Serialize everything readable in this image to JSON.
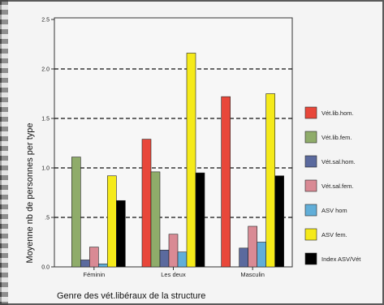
{
  "chart_data": {
    "type": "bar",
    "title": "",
    "xlabel": "Genre des vét.libéraux de la structure",
    "ylabel": "Moyenne nb de personnes per type",
    "ylim": [
      0,
      2.5
    ],
    "yticks": [
      "0.0",
      ".5",
      "1.0",
      "1.5",
      "2.0",
      "2.5"
    ],
    "ytick_values": [
      0,
      0.5,
      1.0,
      1.5,
      2.0,
      2.5
    ],
    "gridlines": "dashed",
    "legend_position": "right",
    "categories": [
      "Féminin",
      "Les deux",
      "Masculin"
    ],
    "series": [
      {
        "name": "Vét.lib.hom.",
        "color": "#e8473a",
        "values": [
          0,
          1.29,
          1.72
        ]
      },
      {
        "name": "Vét.lib.fem.",
        "color": "#8fac6a",
        "values": [
          1.11,
          0.96,
          0
        ]
      },
      {
        "name": "Vét.sal.hom.",
        "color": "#5b6a9e",
        "values": [
          0.07,
          0.17,
          0.19
        ]
      },
      {
        "name": "Vét.sal.fem.",
        "color": "#d98a94",
        "values": [
          0.2,
          0.33,
          0.41
        ]
      },
      {
        "name": "ASV hom",
        "color": "#61aed8",
        "values": [
          0.03,
          0.15,
          0.25
        ]
      },
      {
        "name": "ASV fem.",
        "color": "#f5ea1a",
        "values": [
          0.92,
          2.16,
          1.75
        ]
      },
      {
        "name": "Index ASV/Vét",
        "color": "#000000",
        "values": [
          0.67,
          0.95,
          0.92
        ]
      }
    ]
  }
}
